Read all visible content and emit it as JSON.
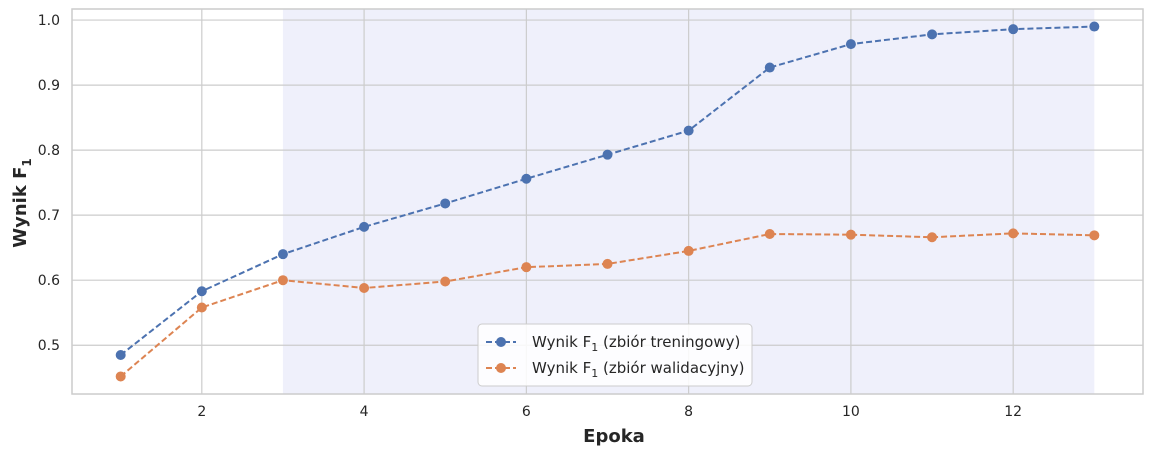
{
  "chart_data": {
    "type": "line",
    "title": "",
    "xlabel": "Epoka",
    "ylabel": {
      "main": "Wynik F",
      "sub": "1"
    },
    "xlim": [
      0.4,
      13.6
    ],
    "ylim": [
      0.425,
      1.017
    ],
    "x_ticks": [
      2,
      4,
      6,
      8,
      10,
      12
    ],
    "y_ticks": [
      0.5,
      0.6,
      0.7,
      0.8,
      0.9,
      1.0
    ],
    "x_tick_labels": [
      "2",
      "4",
      "6",
      "8",
      "10",
      "12"
    ],
    "y_tick_labels": [
      "0.5",
      "0.6",
      "0.7",
      "0.8",
      "0.9",
      "1.0"
    ],
    "grid": true,
    "shaded_region": {
      "x_start": 3,
      "x_end": 13,
      "color": "#eff0fb"
    },
    "legend_position": "bottom-center",
    "x": [
      1,
      2,
      3,
      4,
      5,
      6,
      7,
      8,
      9,
      10,
      11,
      12,
      13
    ],
    "series": [
      {
        "name": {
          "prefix": "Wynik F",
          "sub": "1",
          "suffix": " (zbiór treningowy)"
        },
        "color": "#4c72b0",
        "values": [
          0.485,
          0.583,
          0.64,
          0.682,
          0.718,
          0.756,
          0.793,
          0.83,
          0.927,
          0.963,
          0.978,
          0.986,
          0.99
        ]
      },
      {
        "name": {
          "prefix": "Wynik F",
          "sub": "1",
          "suffix": " (zbiór walidacyjny)"
        },
        "color": "#dd8452",
        "values": [
          0.452,
          0.558,
          0.6,
          0.588,
          0.598,
          0.62,
          0.625,
          0.645,
          0.671,
          0.67,
          0.666,
          0.672,
          0.669
        ]
      }
    ]
  }
}
